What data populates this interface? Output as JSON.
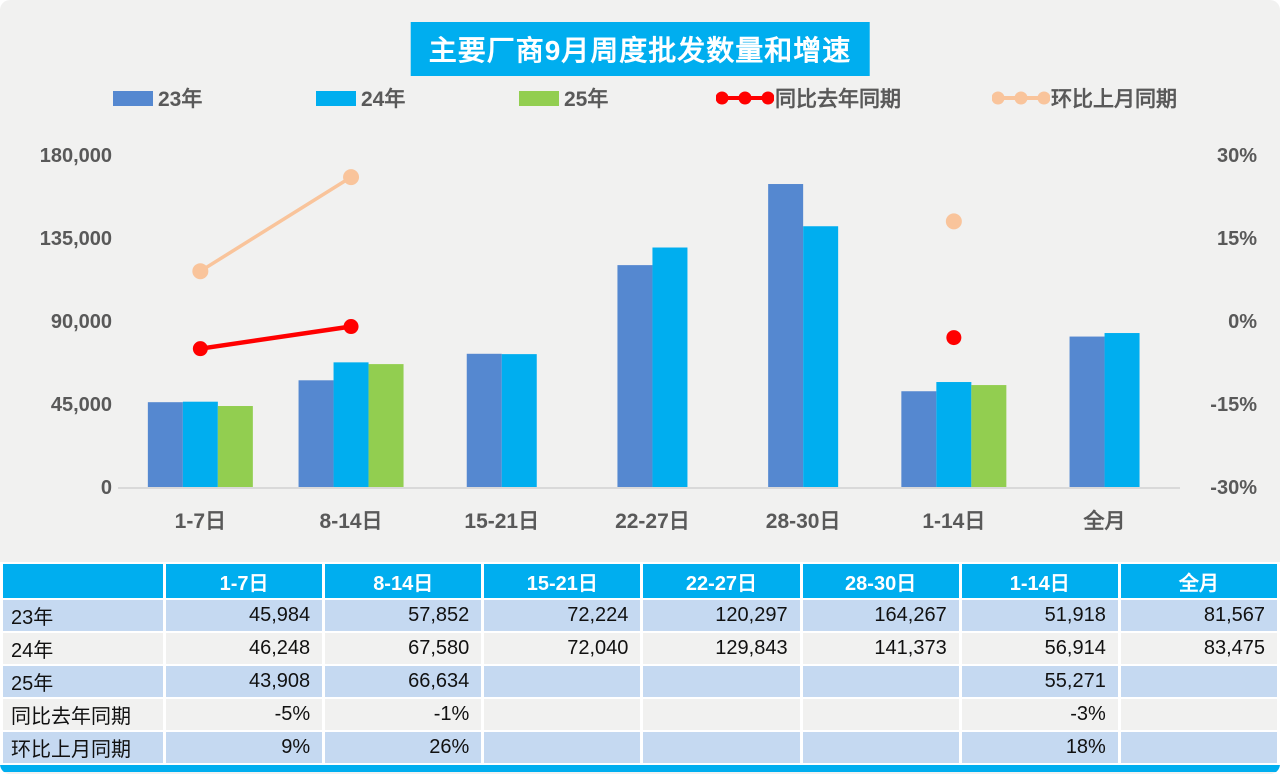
{
  "chart_data": {
    "type": "bar",
    "subtype": "grouped-bars-with-lines-combo",
    "title": "主要厂商9月周度批发数量和增速",
    "categories": [
      "1-7日",
      "8-14日",
      "15-21日",
      "22-27日",
      "28-30日",
      "1-14日",
      "全月"
    ],
    "bar_series": [
      {
        "name": "23年",
        "color": "#5588D0",
        "values": [
          45984,
          57852,
          72224,
          120297,
          164267,
          51918,
          81567
        ]
      },
      {
        "name": "24年",
        "color": "#00AEEF",
        "values": [
          46248,
          67580,
          72040,
          129843,
          141373,
          56914,
          83475
        ]
      },
      {
        "name": "25年",
        "color": "#92CE50",
        "values": [
          43908,
          66634,
          null,
          null,
          null,
          55271,
          null
        ]
      }
    ],
    "line_series": [
      {
        "name": "同比去年同期",
        "color": "#FF0000",
        "axis": "right",
        "values": [
          -5,
          -1,
          null,
          null,
          null,
          -3,
          null
        ]
      },
      {
        "name": "环比上月同期",
        "color": "#F9C49B",
        "axis": "right",
        "values": [
          9,
          26,
          null,
          null,
          null,
          18,
          null
        ]
      }
    ],
    "left_axis": {
      "min": 0,
      "max": 180000,
      "ticks": [
        {
          "value": 0,
          "label": "0"
        },
        {
          "value": 45000,
          "label": "45,000"
        },
        {
          "value": 90000,
          "label": "90,000"
        },
        {
          "value": 135000,
          "label": "135,000"
        },
        {
          "value": 180000,
          "label": "180,000"
        }
      ]
    },
    "right_axis": {
      "min": -30,
      "max": 30,
      "ticks": [
        {
          "value": -30,
          "label": "-30%"
        },
        {
          "value": -15,
          "label": "-15%"
        },
        {
          "value": 0,
          "label": "0%"
        },
        {
          "value": 15,
          "label": "15%"
        },
        {
          "value": 30,
          "label": "30%"
        }
      ]
    },
    "grid": "off",
    "legend_position": "top"
  },
  "legend": {
    "items": [
      {
        "label": "23年",
        "type": "bar",
        "color": "#5588D0"
      },
      {
        "label": "24年",
        "type": "bar",
        "color": "#00AEEF"
      },
      {
        "label": "25年",
        "type": "bar",
        "color": "#92CE50"
      },
      {
        "label": "同比去年同期",
        "type": "line",
        "color": "#FF0000"
      },
      {
        "label": "环比上月同期",
        "type": "line",
        "color": "#F9C49B"
      }
    ]
  },
  "table": {
    "header": [
      "",
      "1-7日",
      "8-14日",
      "15-21日",
      "22-27日",
      "28-30日",
      "1-14日",
      "全月"
    ],
    "rows": [
      {
        "label": "23年",
        "values": [
          "45,984",
          "57,852",
          "72,224",
          "120,297",
          "164,267",
          "51,918",
          "81,567"
        ]
      },
      {
        "label": "24年",
        "values": [
          "46,248",
          "67,580",
          "72,040",
          "129,843",
          "141,373",
          "56,914",
          "83,475"
        ]
      },
      {
        "label": "25年",
        "values": [
          "43,908",
          "66,634",
          "",
          "",
          "",
          "55,271",
          ""
        ]
      },
      {
        "label": "同比去年同期",
        "values": [
          "-5%",
          "-1%",
          "",
          "",
          "",
          "-3%",
          ""
        ]
      },
      {
        "label": "环比上月同期",
        "values": [
          "9%",
          "26%",
          "",
          "",
          "",
          "18%",
          ""
        ]
      }
    ]
  },
  "colors": {
    "accent_cyan": "#00AEEF",
    "bar_blue": "#5588D0",
    "bar_green": "#92CE50",
    "line_red": "#FF0000",
    "line_peach": "#F9C49B",
    "row_blue": "#C5D9F1",
    "row_gray": "#F1F1F0",
    "axis_text": "#595959",
    "background": "#F1F1F0"
  }
}
